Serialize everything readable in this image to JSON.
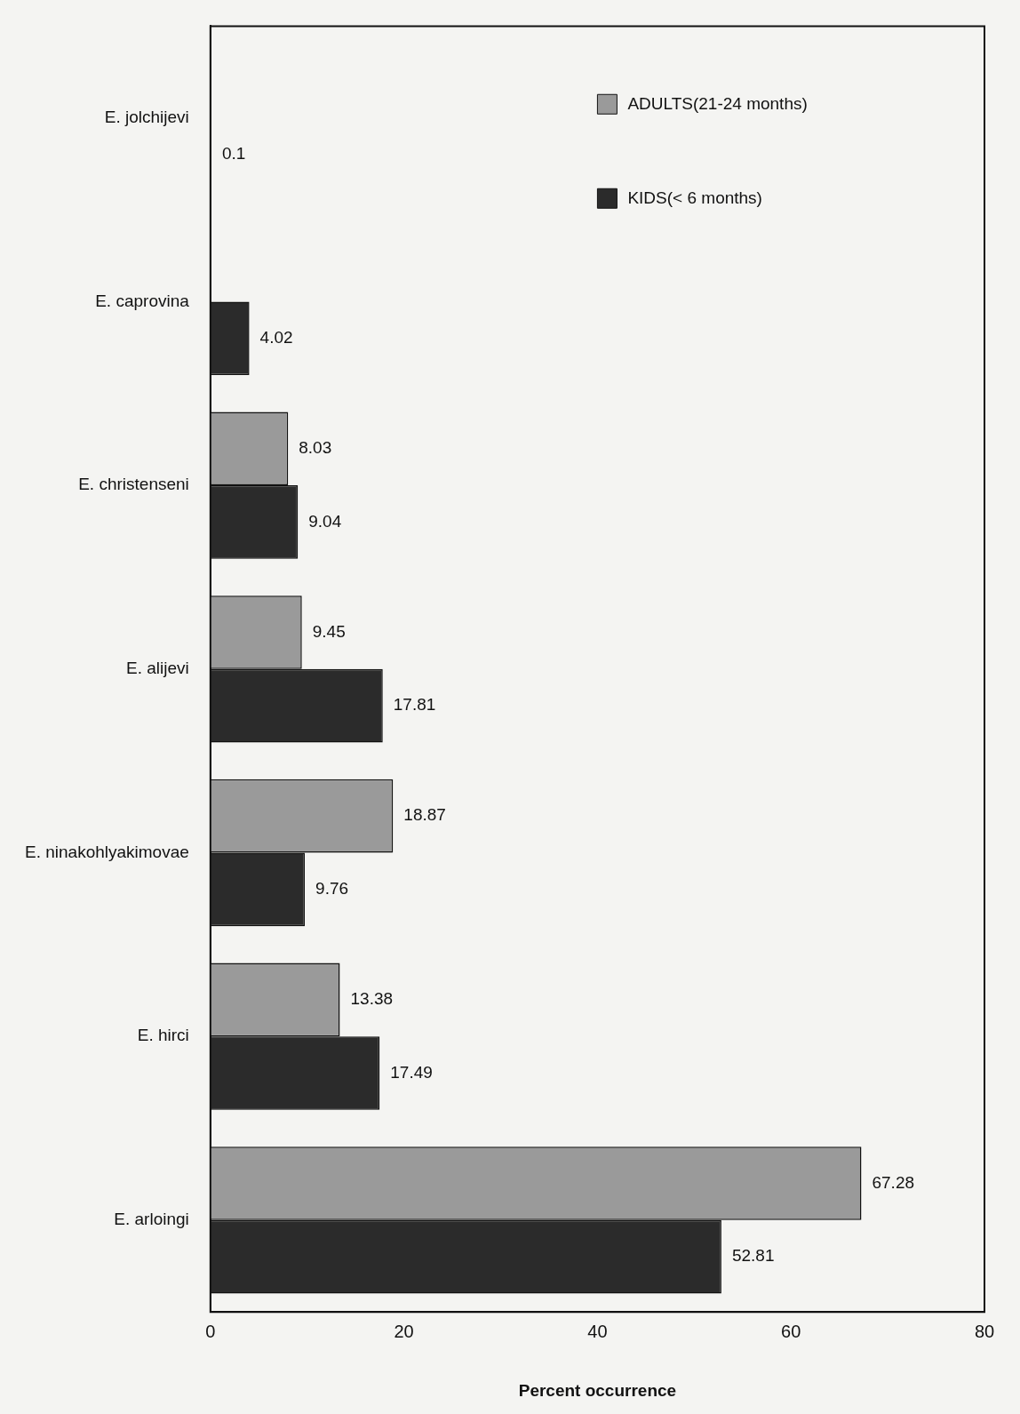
{
  "chart_data": {
    "type": "bar",
    "orientation": "horizontal",
    "xlabel": "Percent occurrence",
    "categories": [
      "E. jolchijevi",
      "E. caprovina",
      "E. christenseni",
      "E. alijevi",
      "E. ninakohlyakimovae",
      "E. hirci",
      "E. arloingi"
    ],
    "series": [
      {
        "name": "ADULTS(21-24 months)",
        "color": "#9a9a9a",
        "values": [
          null,
          null,
          8.03,
          9.45,
          18.87,
          13.38,
          67.28
        ]
      },
      {
        "name": "KIDS(< 6 months)",
        "color": "#2b2b2b",
        "values": [
          0.1,
          4.02,
          9.04,
          17.81,
          9.76,
          17.49,
          52.81
        ]
      }
    ],
    "xlim": [
      0,
      80
    ],
    "xticks": [
      0,
      20,
      40,
      60,
      80
    ],
    "grid": false,
    "legend": "top right",
    "data_labels": true
  }
}
